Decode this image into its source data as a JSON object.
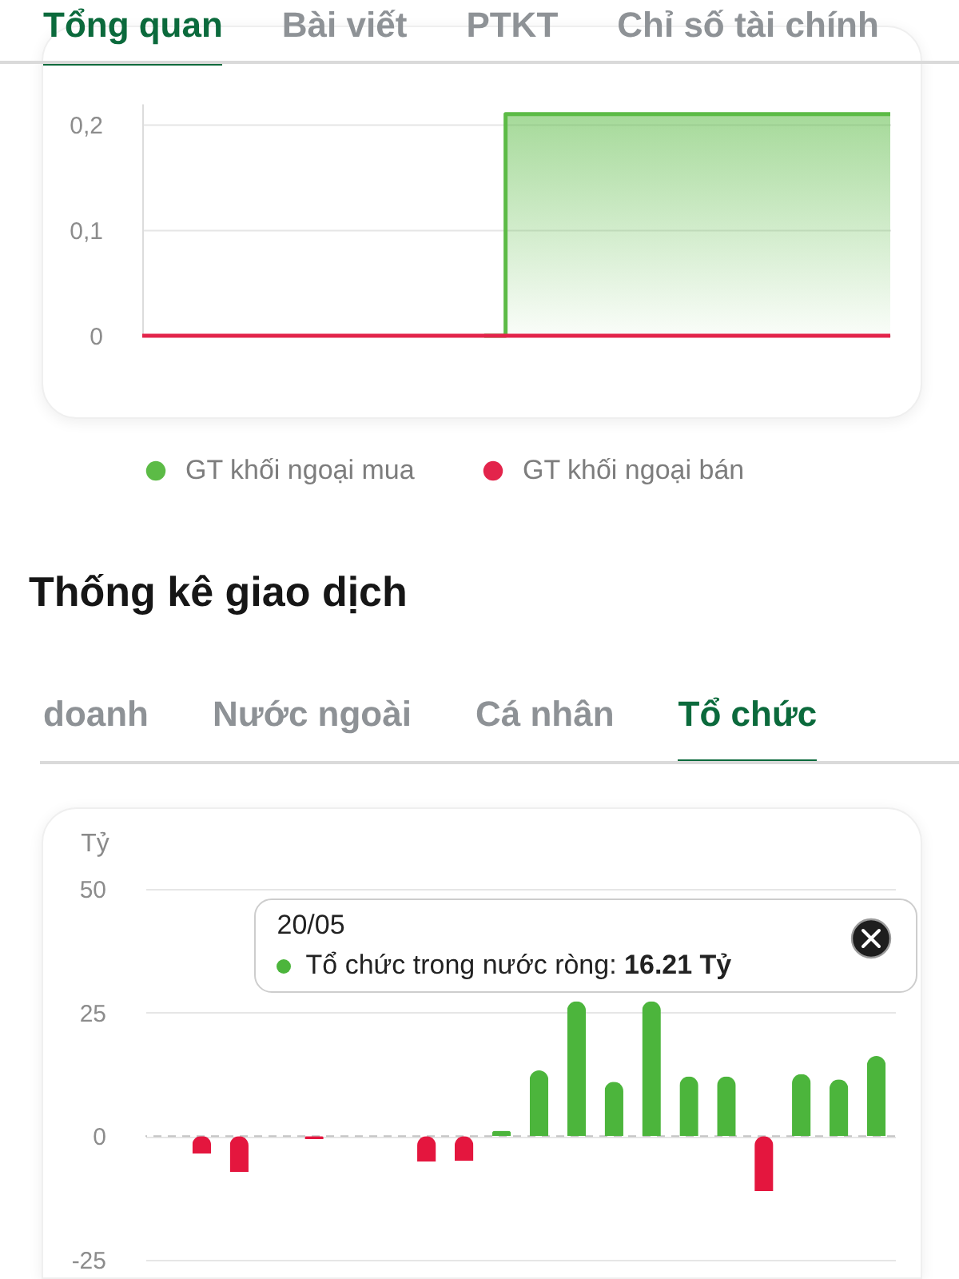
{
  "chart_data": [
    {
      "type": "area",
      "annotations": [
        "Tổng quan",
        "Bài viết",
        "PTKT",
        "Chỉ số tài chính"
      ],
      "categories": [
        null,
        null,
        null,
        null,
        null,
        null,
        null,
        null,
        null,
        null,
        null,
        null,
        null,
        null,
        null,
        null,
        null,
        null,
        null,
        null,
        null,
        null,
        null,
        null,
        null,
        null,
        null,
        null,
        null,
        null,
        null,
        null,
        null,
        null,
        null,
        null
      ],
      "series": [
        {
          "name": "GT khối ngoại mua",
          "color": "#5cbb46",
          "values": [
            null,
            null,
            null,
            null,
            null,
            null,
            null,
            null,
            null,
            null,
            null,
            null,
            null,
            null,
            null,
            null,
            0,
            0.21,
            0.21,
            0.21,
            0.21,
            0.21,
            0.21,
            0.21,
            0.21,
            0.21,
            0.21,
            0.21,
            0.21,
            0.21,
            0.21,
            0.21,
            0.21,
            0.21,
            0.21,
            0.21
          ]
        },
        {
          "name": "GT khối ngoại bán",
          "color": "#e3244b",
          "type": "line",
          "values": [
            0,
            0,
            0,
            0,
            0,
            0,
            0,
            0,
            0,
            0,
            0,
            0,
            0,
            0,
            0,
            0,
            0,
            0,
            0,
            0,
            0,
            0,
            0,
            0,
            0,
            0,
            0,
            0,
            0,
            0,
            0,
            0,
            0,
            0,
            0,
            0
          ]
        }
      ],
      "ylim": [
        0,
        0.22
      ],
      "yticks": [
        0,
        {
          "value": 0.1,
          "label": "0,1"
        },
        {
          "value": 0.2,
          "label": "0,2"
        }
      ],
      "grid": "y",
      "legend": "bottom"
    },
    {
      "type": "bar",
      "title": "Thống kê giao dịch",
      "ylabel": "Tỷ",
      "annotations": [
        "doanh",
        "Nước ngoài",
        "Cá nhân",
        "Tổ chức",
        "20/05",
        "Tổ chức trong nước ròng: 16.21 Tỷ"
      ],
      "categories": [
        null,
        null,
        null,
        null,
        null,
        null,
        null,
        null,
        null,
        null,
        null,
        null,
        null,
        null,
        null,
        null,
        null,
        null,
        null,
        null
      ],
      "values": [
        0,
        -3.5,
        -7.2,
        0,
        -0.6,
        0,
        0,
        -5.1,
        -5.0,
        1.1,
        13.3,
        27.3,
        11.0,
        27.3,
        12.1,
        12.1,
        -11.1,
        12.6,
        11.5,
        16.21
      ],
      "colors": [
        "#4cb53c",
        "#e4163e",
        "#e4163e",
        "#4cb53c",
        "#e4163e",
        "#4cb53c",
        "#4cb53c",
        "#e4163e",
        "#e4163e",
        "#4cb53c",
        "#4cb53c",
        "#4cb53c",
        "#4cb53c",
        "#4cb53c",
        "#4cb53c",
        "#4cb53c",
        "#e4163e",
        "#4cb53c",
        "#4cb53c",
        "#4cb53c"
      ],
      "ylim": [
        -25,
        50
      ],
      "yticks": [
        -25,
        0,
        25,
        50
      ],
      "grid": "y",
      "ref_lines": [
        {
          "axis": "y",
          "value": 0,
          "color": "#c4c4c4",
          "line_style": "dashed"
        }
      ]
    }
  ]
}
